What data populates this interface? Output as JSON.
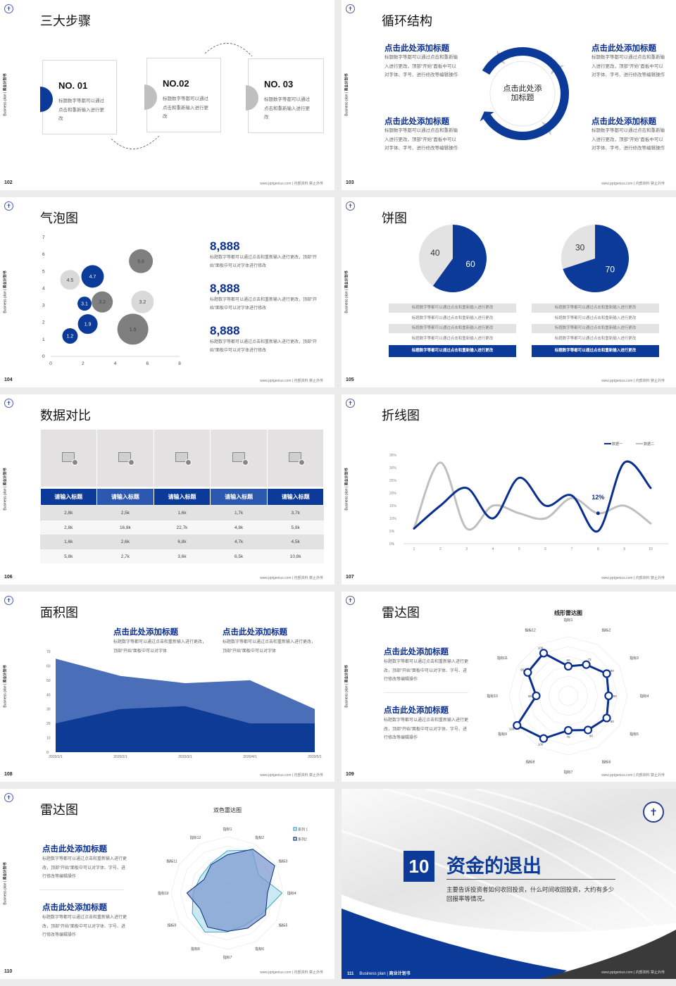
{
  "common": {
    "side_label_en": "Business plan | ",
    "side_label_cn": "商业计划书",
    "footer": "www.pptgenius.com | 内部资料 禁止外传",
    "logo_icon": "university-seal-icon",
    "colors": {
      "blue": "#0b3a99",
      "navy": "#0b2f8f",
      "gray": "#7f7f7f",
      "light_gray": "#d9d9d9"
    }
  },
  "slides": {
    "s102": {
      "page": "102",
      "title": "三大步骤",
      "steps": [
        {
          "no": "NO. 01",
          "text": "标题数字等都可以通过点击和重新输入进行更改",
          "active": true
        },
        {
          "no": "NO.02",
          "text": "标题数字等都可以通过点击和重新输入进行更改",
          "active": false
        },
        {
          "no": "NO. 03",
          "text": "标题数字等都可以通过点击和重新输入进行更改",
          "active": false
        }
      ]
    },
    "s103": {
      "page": "103",
      "title": "循环结构",
      "center": "点击此处添加标题",
      "items": [
        {
          "heading": "点击此处添加标题",
          "text": "标题数字等都可以通过点击和重新输入进行更改，顶部“开始”面板中可以对字体、字号、进行修改等编辑操作"
        },
        {
          "heading": "点击此处添加标题",
          "text": "标题数字等都可以通过点击和重新输入进行更改，顶部“开始”面板中可以对字体、字号、进行修改等编辑操作"
        },
        {
          "heading": "点击此处添加标题",
          "text": "标题数字等都可以通过点击和重新输入进行更改，顶部“开始”面板中可以对字体、字号、进行修改等编辑操作"
        },
        {
          "heading": "点击此处添加标题",
          "text": "标题数字等都可以通过点击和重新输入进行更改，顶部“开始”面板中可以对字体、字号、进行修改等编辑操作"
        }
      ]
    },
    "s104": {
      "page": "104",
      "title": "气泡图",
      "stats": [
        {
          "value": "8,888",
          "text": "标题数字等都可以通过点击和重新输入进行更改，顶部“开始”面板中可以对字体进行修改"
        },
        {
          "value": "8,888",
          "text": "标题数字等都可以通过点击和重新输入进行更改，顶部“开始”面板中可以对字体进行修改"
        },
        {
          "value": "8,888",
          "text": "标题数字等都可以通过点击和重新输入进行更改，顶部“开始”面板中可以对字体进行修改"
        }
      ]
    },
    "s105": {
      "page": "105",
      "title": "饼图",
      "rows_left": [
        "标题数字等都可以通过点击和重新输入进行更改",
        "标题数字等都可以通过点击和重新输入进行更改",
        "标题数字等都可以通过点击和重新输入进行更改",
        "标题数字等都可以通过点击和重新输入进行更改",
        "标题数字等都可以通过点击和重新输入进行更改"
      ],
      "rows_right": [
        "标题数字等都可以通过点击和重新输入进行更改",
        "标题数字等都可以通过点击和重新输入进行更改",
        "标题数字等都可以通过点击和重新输入进行更改",
        "标题数字等都可以通过点击和重新输入进行更改",
        "标题数字等都可以通过点击和重新输入进行更改"
      ]
    },
    "s106": {
      "page": "106",
      "title": "数据对比",
      "image_icon": "image-add-icon",
      "headers": [
        "请输入标题",
        "请输入标题",
        "请输入标题",
        "请输入标题",
        "请输入标题"
      ],
      "rows": [
        [
          "2,8k",
          "2,5k",
          "1,6k",
          "1,7k",
          "3,7k"
        ],
        [
          "2,8k",
          "16,8k",
          "22,7k",
          "4,8k",
          "5,8k"
        ],
        [
          "1,6k",
          "2,6k",
          "6,8k",
          "4,7k",
          "4,5k"
        ],
        [
          "5,8k",
          "2,7k",
          "3,6k",
          "6,5k",
          "10,8k"
        ]
      ]
    },
    "s107": {
      "page": "107",
      "title": "折线图"
    },
    "s108": {
      "page": "108",
      "title": "面积图",
      "items": [
        {
          "heading": "点击此处添加标题",
          "text": "标题数字等都可以通过点击和重新输入进行更改，顶部“开始”面板中可以对字体"
        },
        {
          "heading": "点击此处添加标题",
          "text": "标题数字等都可以通过点击和重新输入进行更改，顶部“开始”面板中可以对字体"
        }
      ]
    },
    "s109": {
      "page": "109",
      "title": "雷达图",
      "items": [
        {
          "heading": "点击此处添加标题",
          "text": "标题数字等都可以通过点击和重新输入进行更改，顶部“开始”面板中可以对字体、字号、进行修改等编辑操作"
        },
        {
          "heading": "点击此处添加标题",
          "text": "标题数字等都可以通过点击和重新输入进行更改，顶部“开始”面板中可以对字体、字号、进行修改等编辑操作"
        }
      ]
    },
    "s110": {
      "page": "110",
      "title": "雷达图",
      "items": [
        {
          "heading": "点击此处添加标题",
          "text": "标题数字等都可以通过点击和重新输入进行更改，顶部“开始”面板中可以对字体、字号、进行修改等编辑操作"
        },
        {
          "heading": "点击此处添加标题",
          "text": "标题数字等都可以通过点击和重新输入进行更改，顶部“开始”面板中可以对字体、字号、进行修改等编辑操作"
        }
      ]
    },
    "s111": {
      "page": "111",
      "number": "10",
      "title": "资金的退出",
      "text": "主要告诉投资者如何收回投资，什么时间收回投资，大约有多少回报率等情况。",
      "footer_en": "Business plan | ",
      "footer_cn": "商业计划书"
    }
  },
  "chart_data": [
    {
      "id": "bubble",
      "type": "scatter",
      "xlim": [
        0,
        8
      ],
      "ylim": [
        0,
        7
      ],
      "xticks": [
        "0",
        "2",
        "4",
        "6",
        "8"
      ],
      "yticks": [
        "0",
        "1",
        "2",
        "3",
        "4",
        "5",
        "6",
        "7"
      ],
      "points": [
        {
          "x": 1.2,
          "y": 1.2,
          "size": 11,
          "label": "1.2",
          "color": "#0b3a99"
        },
        {
          "x": 2.3,
          "y": 1.9,
          "size": 14,
          "label": "1.9",
          "color": "#0b3a99"
        },
        {
          "x": 2.1,
          "y": 3.1,
          "size": 10,
          "label": "3.1",
          "color": "#0b3a99"
        },
        {
          "x": 2.6,
          "y": 4.7,
          "size": 16,
          "label": "4.7",
          "color": "#0b3a99"
        },
        {
          "x": 1.2,
          "y": 4.5,
          "size": 14,
          "label": "4.5",
          "color": "#d9d9d9"
        },
        {
          "x": 3.2,
          "y": 3.2,
          "size": 15,
          "label": "3.2",
          "color": "#7f7f7f"
        },
        {
          "x": 5.6,
          "y": 5.6,
          "size": 17,
          "label": "5.6",
          "color": "#7f7f7f"
        },
        {
          "x": 5.7,
          "y": 3.2,
          "size": 16,
          "label": "3.2",
          "color": "#d9d9d9"
        },
        {
          "x": 5.1,
          "y": 1.6,
          "size": 22,
          "label": "1.6",
          "color": "#7f7f7f"
        }
      ]
    },
    {
      "id": "pie1",
      "type": "pie",
      "values": [
        60,
        40
      ],
      "labels": [
        "60",
        "40"
      ],
      "colors": [
        "#0b3a99",
        "#e3e3e3"
      ]
    },
    {
      "id": "pie2",
      "type": "pie",
      "values": [
        70,
        30
      ],
      "labels": [
        "70",
        "30"
      ],
      "colors": [
        "#0b3a99",
        "#e3e3e3"
      ]
    },
    {
      "id": "line",
      "type": "line",
      "categories": [
        "1",
        "2",
        "3",
        "4",
        "5",
        "6",
        "7",
        "8",
        "9",
        "10"
      ],
      "ylim": [
        0,
        35
      ],
      "yticks": [
        "0%",
        "5%",
        "10%",
        "15%",
        "20%",
        "25%",
        "30%",
        "35%"
      ],
      "series": [
        {
          "name": "数据一",
          "color": "#0b2f8f",
          "values": [
            6,
            15,
            22,
            10,
            26,
            15,
            19,
            5,
            32,
            22
          ]
        },
        {
          "name": "数据二",
          "color": "#bfbfbf",
          "values": [
            6,
            32,
            6,
            15,
            12,
            10,
            18,
            12,
            15,
            8
          ]
        }
      ],
      "annotation": {
        "x": "8",
        "y": 12,
        "label": "12%"
      },
      "legend": "top-right"
    },
    {
      "id": "area",
      "type": "area",
      "categories": [
        "2020/1/1",
        "2020/2/1",
        "2020/3/1",
        "2020/4/1",
        "2020/5/1"
      ],
      "ylim": [
        0,
        70
      ],
      "yticks": [
        "0",
        "10",
        "20",
        "30",
        "40",
        "50",
        "60",
        "70"
      ],
      "series": [
        {
          "color": "#4a6fb8",
          "values": [
            65,
            53,
            48,
            50,
            30
          ]
        },
        {
          "color": "#0e3b96",
          "values": [
            20,
            30,
            32,
            20,
            20
          ]
        }
      ]
    },
    {
      "id": "radar1",
      "type": "radar",
      "title": "线形雷达图",
      "axes": [
        "指标1",
        "指标2",
        "指标3",
        "指标4",
        "指标5",
        "指标6",
        "指标7",
        "指标8",
        "指标9",
        "指标10",
        "指标11",
        "指标12"
      ],
      "max": 120,
      "series": [
        {
          "color": "#0b2f8f",
          "values": [
            60,
            73,
            90,
            82,
            90,
            80,
            70,
            100,
            120,
            65,
            95,
            100
          ]
        }
      ]
    },
    {
      "id": "radar2",
      "type": "radar",
      "title": "双色雷达图",
      "axes": [
        "指标1",
        "指标2",
        "指标3",
        "指标4",
        "指标5",
        "指标6",
        "指标7",
        "指标8",
        "指标9",
        "指标10",
        "指标11",
        "指标12"
      ],
      "max": 100,
      "legend": "top-right",
      "series": [
        {
          "name": "系列 1",
          "color": "#3aa3c9",
          "fill": "#bfe3f0",
          "values": [
            75,
            88,
            64,
            97,
            72,
            65,
            69,
            80,
            72,
            61,
            56,
            60
          ]
        },
        {
          "name": "系列2",
          "color": "#0b2a7a",
          "fill": "#7d9bd0",
          "values": [
            68,
            90,
            97,
            71,
            78,
            72,
            68,
            70,
            56,
            72,
            48,
            58
          ]
        }
      ]
    }
  ]
}
